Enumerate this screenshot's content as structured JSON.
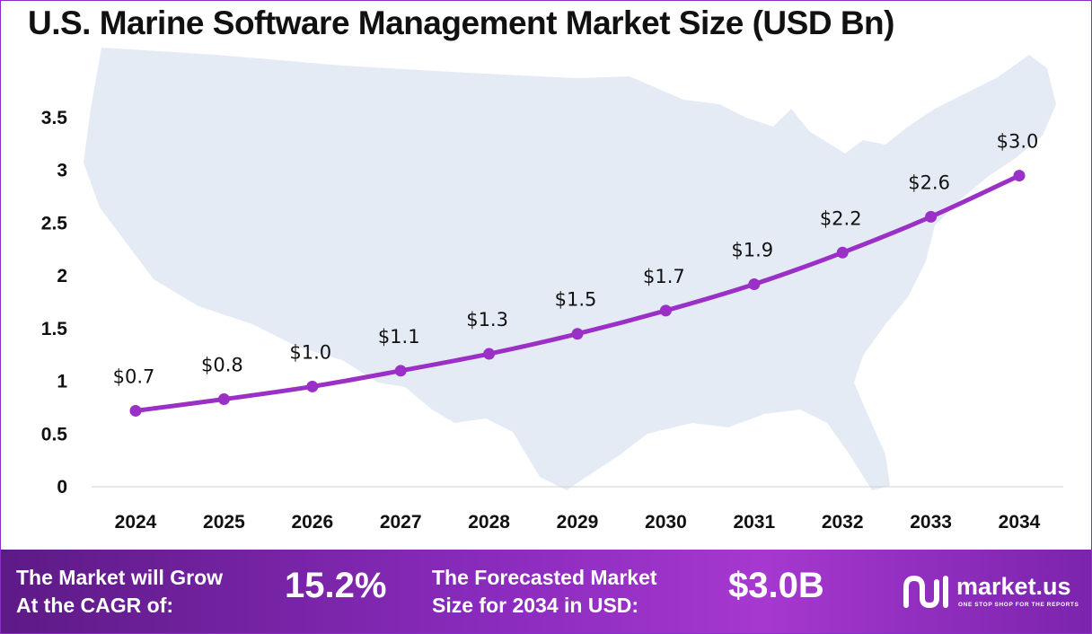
{
  "chart_data": {
    "type": "line",
    "title": "U.S. Marine Software Management Market Size (USD Bn)",
    "xlabel": "",
    "ylabel": "",
    "categories": [
      "2024",
      "2025",
      "2026",
      "2027",
      "2028",
      "2029",
      "2030",
      "2031",
      "2032",
      "2033",
      "2034"
    ],
    "series": [
      {
        "values": [
          0.72,
          0.83,
          0.95,
          1.1,
          1.26,
          1.45,
          1.67,
          1.92,
          2.22,
          2.56,
          2.95
        ]
      }
    ],
    "data_labels": [
      "$0.7",
      "$0.8",
      "$1.0",
      "$1.1",
      "$1.3",
      "$1.5",
      "$1.7",
      "$1.9",
      "$2.2",
      "$2.6",
      "$3.0"
    ],
    "yticks": [
      "0",
      "0.5",
      "1",
      "1.5",
      "2",
      "2.5",
      "3",
      "3.5"
    ],
    "ytick_values": [
      0,
      0.5,
      1,
      1.5,
      2,
      2.5,
      3,
      3.5
    ],
    "ylim": [
      0,
      3.5
    ],
    "grid": false,
    "line_color": "#9b30c6",
    "background_map": "united-states-map"
  },
  "footer": {
    "cagr_label": "The Market will Grow\nAt the CAGR of:",
    "cagr_value": "15.2%",
    "forecast_label": "The Forecasted Market\nSize for 2034 in USD:",
    "forecast_value": "$3.0B",
    "brand_name": "market.us",
    "brand_tagline": "ONE STOP SHOP FOR THE REPORTS",
    "brand_icon": "market-us-logo-icon"
  },
  "colors": {
    "accent": "#9b30c6",
    "footer_start": "#5d1a86",
    "footer_end": "#a638cf",
    "map_fill": "#e4ebf5"
  }
}
